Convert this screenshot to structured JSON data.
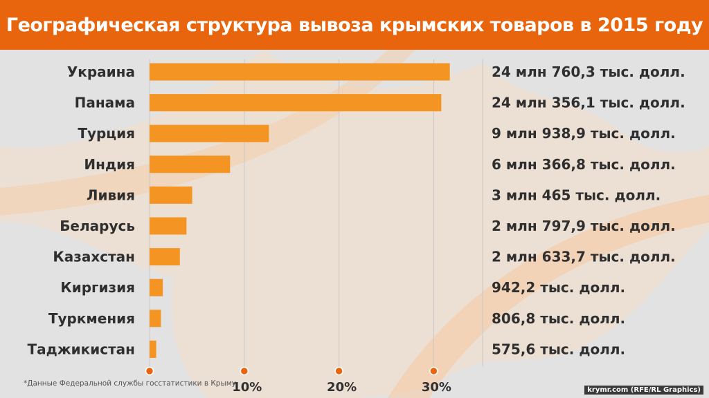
{
  "title": "Географическая структура вывоза крымских товаров в 2015 году",
  "footnote": "*Данные Федеральной службы госстатистики в Крыму",
  "credit": "krymr.com (RFE/RL Graphics)",
  "colors": {
    "title_bg": "#e8650e",
    "bar": "#f39423",
    "tick_dot": "#e8650e",
    "background": "#e2e2e2",
    "text": "#2f2f2f"
  },
  "chart_data": {
    "type": "bar",
    "orientation": "horizontal",
    "categories": [
      "Украина",
      "Панама",
      "Турция",
      "Индия",
      "Ливия",
      "Беларусь",
      "Казахстан",
      "Киргизия",
      "Туркмения",
      "Таджикистан"
    ],
    "values": [
      31.7,
      30.8,
      12.6,
      8.5,
      4.5,
      3.9,
      3.2,
      1.4,
      1.2,
      0.7
    ],
    "value_labels": [
      "24 млн 760,3 тыс. долл.",
      "24 млн 356,1 тыс. долл.",
      "9 млн 938,9 тыс. долл.",
      "6 млн 366,8 тыс. долл.",
      "3 млн 465 тыс. долл.",
      "2 млн 797,9 тыс. долл.",
      "2 млн 633,7 тыс. долл.",
      "942,2 тыс. долл.",
      "806,8 тыс. долл.",
      "575,6 тыс. долл."
    ],
    "x_ticks": [
      0,
      10,
      20,
      30
    ],
    "x_tick_labels": [
      "",
      "10%",
      "20%",
      "30%"
    ],
    "xlim": [
      0,
      35
    ],
    "grid": true
  }
}
